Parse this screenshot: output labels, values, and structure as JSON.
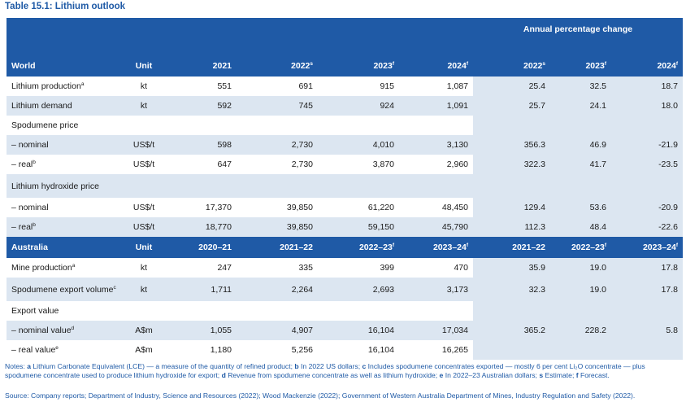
{
  "title": "Table 15.1: Lithium outlook",
  "annual_change_label": "Annual percentage change",
  "world_header": {
    "section": "World",
    "unit": "Unit",
    "cols": [
      "2021",
      "2022",
      "2023",
      "2024"
    ],
    "col_sup": [
      "",
      "s",
      "f",
      "f"
    ],
    "pct_cols": [
      "2022",
      "2023",
      "2024"
    ],
    "pct_sup": [
      "s",
      "f",
      "f"
    ]
  },
  "world_rows": [
    {
      "label": "Lithium production",
      "sup": "a",
      "unit": "kt",
      "values": [
        "551",
        "691",
        "915",
        "1,087"
      ],
      "pct": [
        "25.4",
        "32.5",
        "18.7"
      ]
    },
    {
      "label": "Lithium demand",
      "sup": "",
      "unit": "kt",
      "values": [
        "592",
        "745",
        "924",
        "1,091"
      ],
      "pct": [
        "25.7",
        "24.1",
        "18.0"
      ]
    },
    {
      "label": "Spodumene price",
      "sup": "",
      "unit": "",
      "values": [
        "",
        "",
        "",
        ""
      ],
      "pct": [
        "",
        "",
        ""
      ]
    },
    {
      "label": "– nominal",
      "sup": "",
      "unit": "US$/t",
      "values": [
        "598",
        "2,730",
        "4,010",
        "3,130"
      ],
      "pct": [
        "356.3",
        "46.9",
        "-21.9"
      ]
    },
    {
      "label": "– real",
      "sup": "b",
      "unit": "US$/t",
      "values": [
        "647",
        "2,730",
        "3,870",
        "2,960"
      ],
      "pct": [
        "322.3",
        "41.7",
        "-23.5"
      ]
    },
    {
      "label": "Lithium hydroxide price",
      "sup": "",
      "unit": "",
      "values": [
        "",
        "",
        "",
        ""
      ],
      "pct": [
        "",
        "",
        ""
      ]
    },
    {
      "label": "– nominal",
      "sup": "",
      "unit": "US$/t",
      "values": [
        "17,370",
        "39,850",
        "61,220",
        "48,450"
      ],
      "pct": [
        "129.4",
        "53.6",
        "-20.9"
      ]
    },
    {
      "label": "– real",
      "sup": "b",
      "unit": "US$/t",
      "values": [
        "18,770",
        "39,850",
        "59,150",
        "45,790"
      ],
      "pct": [
        "112.3",
        "48.4",
        "-22.6"
      ]
    }
  ],
  "aus_header": {
    "section": "Australia",
    "unit": "Unit",
    "cols": [
      "2020–21",
      "2021–22",
      "2022–23",
      "2023–24"
    ],
    "col_sup": [
      "",
      "",
      "f",
      "f"
    ],
    "pct_cols": [
      "2021–22",
      "2022–23",
      "2023–24"
    ],
    "pct_sup": [
      "",
      "f",
      "f"
    ]
  },
  "aus_rows": [
    {
      "label": "Mine production",
      "sup": "a",
      "unit": "kt",
      "values": [
        "247",
        "335",
        "399",
        "470"
      ],
      "pct": [
        "35.9",
        "19.0",
        "17.8"
      ]
    },
    {
      "label": "Spodumene export volume",
      "sup": "c",
      "unit": "kt",
      "values": [
        "1,711",
        "2,264",
        "2,693",
        "3,173"
      ],
      "pct": [
        "32.3",
        "19.0",
        "17.8"
      ]
    },
    {
      "label": "Export value",
      "sup": "",
      "unit": "",
      "values": [
        "",
        "",
        "",
        ""
      ],
      "pct": [
        "",
        "",
        ""
      ]
    },
    {
      "label": "– nominal value",
      "sup": "d",
      "unit": "A$m",
      "values": [
        "1,055",
        "4,907",
        "16,104",
        "17,034"
      ],
      "pct": [
        "365.2",
        "228.2",
        "5.8"
      ]
    },
    {
      "label": "– real value",
      "sup": "e",
      "unit": "A$m",
      "values": [
        "1,180",
        "5,256",
        "16,104",
        "16,265"
      ],
      "pct": [
        "",
        "",
        ""
      ]
    }
  ],
  "notes": {
    "prefix": "Notes: ",
    "items": [
      {
        "key": "a",
        "text": " Lithium Carbonate Equivalent (LCE) — a measure of the quantity of refined product; "
      },
      {
        "key": "b",
        "text": " In 2022 US dollars; "
      },
      {
        "key": "c",
        "text": " Includes spodumene concentrates exported — mostly 6 per cent Li₂O concentrate — plus spodumene concentrate used to produce lithium hydroxide for export; "
      },
      {
        "key": "d",
        "text": " Revenue from spodumene concentrate as well as lithium hydroxide; "
      },
      {
        "key": "e",
        "text": " In 2022–23 Australian dollars; "
      },
      {
        "key": "s",
        "text": " Estimate; "
      },
      {
        "key": "f",
        "text": " Forecast."
      }
    ]
  },
  "source": "Source: Company reports; Department of Industry, Science and Resources (2022); Wood Mackenzie (2022); Government of Western Australia Department of Mines, Industry Regulation and Safety (2022).",
  "colors": {
    "header_blue": "#1f5aa6",
    "shade": "#dce6f1"
  }
}
